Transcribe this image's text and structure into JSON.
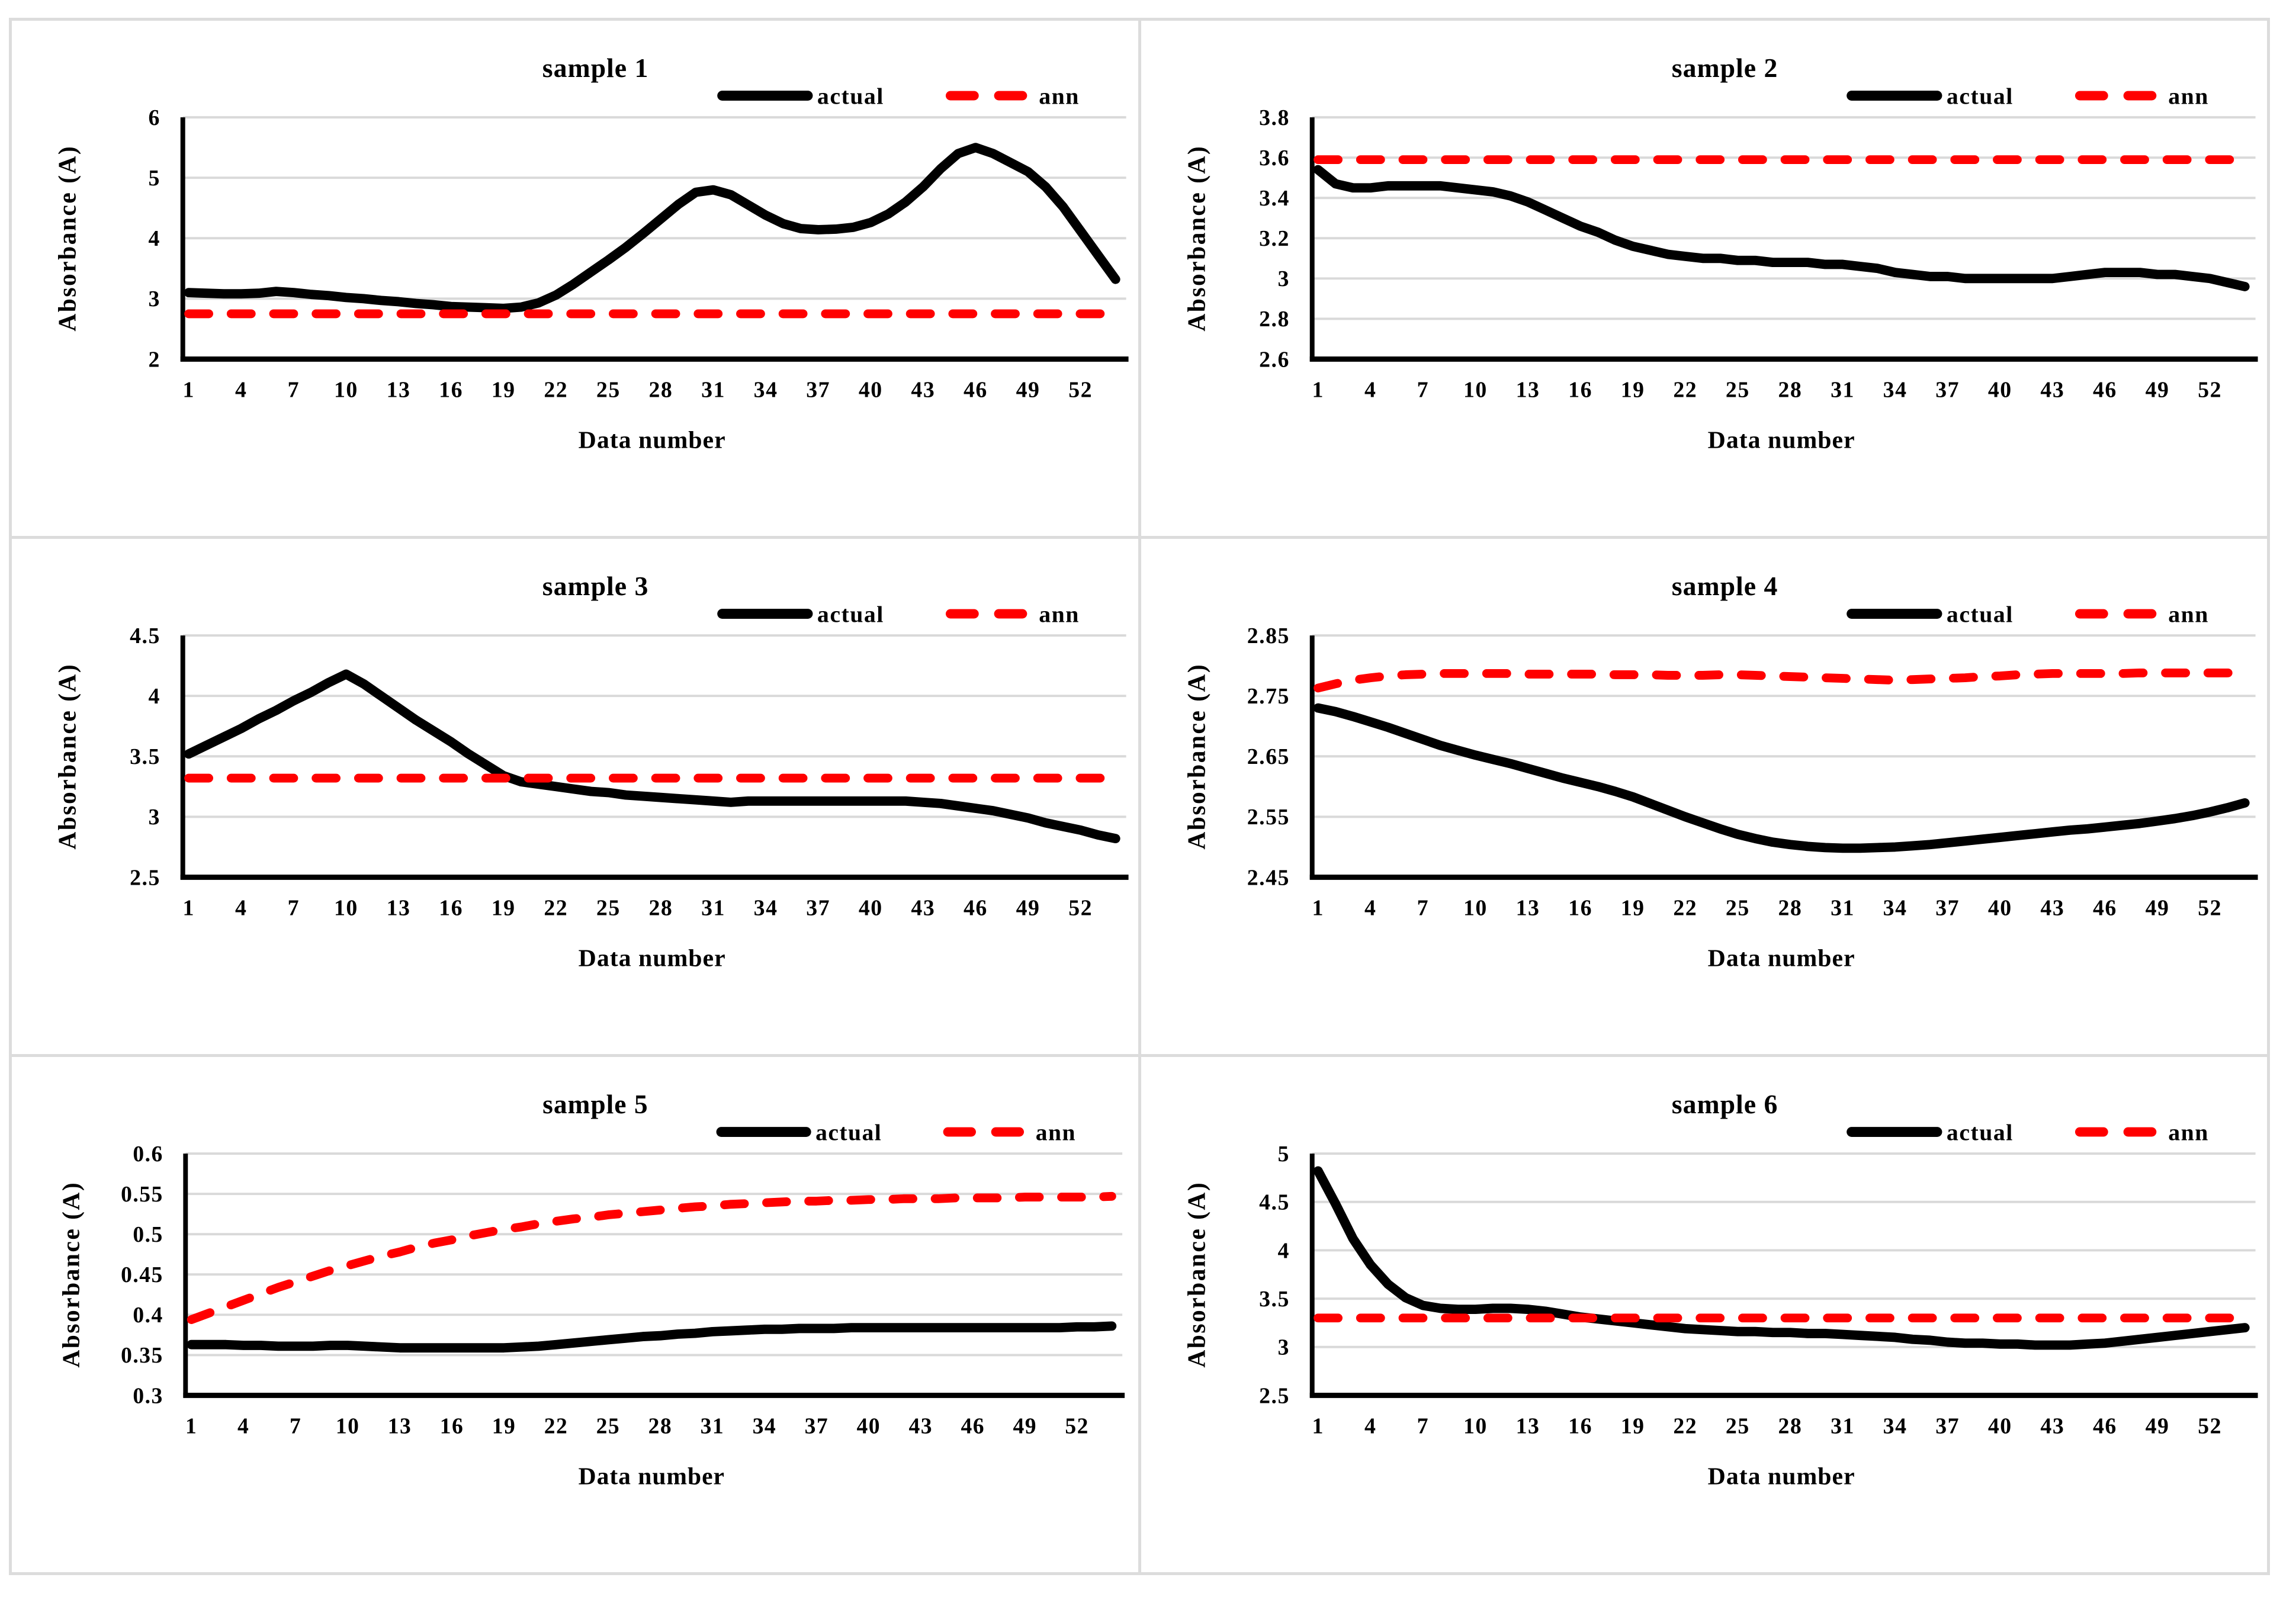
{
  "colors": {
    "actual": "#000000",
    "ann": "#ff0000",
    "gridline": "#d9d9d9",
    "frame_border": "#dcdcdc",
    "axis": "#000000",
    "background": "#ffffff"
  },
  "legend": {
    "actual_label": "actual",
    "ann_label": "ann"
  },
  "axes": {
    "x_label": "Data number",
    "y_label": "Absorbance (A)"
  },
  "chart_data": [
    {
      "type": "line",
      "title": "sample 1",
      "xlabel": "Data number",
      "ylabel": "Absorbance (A)",
      "n_points": 54,
      "x_ticks": [
        1,
        4,
        7,
        10,
        13,
        16,
        19,
        22,
        25,
        28,
        31,
        34,
        37,
        40,
        43,
        46,
        49,
        52
      ],
      "ylim": [
        2,
        6
      ],
      "y_tick_labels": [
        "6",
        "5",
        "4",
        "3",
        "2"
      ],
      "grid": true,
      "legend_position": "top-right",
      "series": [
        {
          "name": "actual",
          "color": "#000000",
          "line": "solid",
          "values": [
            3.1,
            3.09,
            3.08,
            3.08,
            3.09,
            3.12,
            3.1,
            3.07,
            3.05,
            3.02,
            3.0,
            2.97,
            2.95,
            2.92,
            2.9,
            2.87,
            2.86,
            2.85,
            2.84,
            2.86,
            2.93,
            3.06,
            3.24,
            3.44,
            3.64,
            3.85,
            4.08,
            4.32,
            4.56,
            4.76,
            4.8,
            4.72,
            4.55,
            4.38,
            4.24,
            4.16,
            4.14,
            4.15,
            4.18,
            4.26,
            4.4,
            4.6,
            4.85,
            5.15,
            5.4,
            5.5,
            5.4,
            5.25,
            5.1,
            4.85,
            4.52,
            4.12,
            3.72,
            3.32
          ]
        },
        {
          "name": "ann",
          "color": "#ff0000",
          "line": "dashed",
          "constant": 2.75
        }
      ]
    },
    {
      "type": "line",
      "title": "sample 2",
      "xlabel": "Data number",
      "ylabel": "Absorbance (A)",
      "n_points": 54,
      "x_ticks": [
        1,
        4,
        7,
        10,
        13,
        16,
        19,
        22,
        25,
        28,
        31,
        34,
        37,
        40,
        43,
        46,
        49,
        52
      ],
      "ylim": [
        2.6,
        3.8
      ],
      "y_tick_labels": [
        "3.8",
        "3.6",
        "3.4",
        "3.2",
        "3",
        "2.8",
        "2.6"
      ],
      "grid": true,
      "legend_position": "top-right",
      "series": [
        {
          "name": "actual",
          "color": "#000000",
          "line": "solid",
          "values": [
            3.54,
            3.47,
            3.45,
            3.45,
            3.46,
            3.46,
            3.46,
            3.46,
            3.45,
            3.44,
            3.43,
            3.41,
            3.38,
            3.34,
            3.3,
            3.26,
            3.23,
            3.19,
            3.16,
            3.14,
            3.12,
            3.11,
            3.1,
            3.1,
            3.09,
            3.09,
            3.08,
            3.08,
            3.08,
            3.07,
            3.07,
            3.06,
            3.05,
            3.03,
            3.02,
            3.01,
            3.01,
            3.0,
            3.0,
            3.0,
            3.0,
            3.0,
            3.0,
            3.01,
            3.02,
            3.03,
            3.03,
            3.03,
            3.02,
            3.02,
            3.01,
            3.0,
            2.98,
            2.96
          ]
        },
        {
          "name": "ann",
          "color": "#ff0000",
          "line": "dashed",
          "constant": 3.59
        }
      ]
    },
    {
      "type": "line",
      "title": "sample 3",
      "xlabel": "Data number",
      "ylabel": "Absorbance (A)",
      "n_points": 54,
      "x_ticks": [
        1,
        4,
        7,
        10,
        13,
        16,
        19,
        22,
        25,
        28,
        31,
        34,
        37,
        40,
        43,
        46,
        49,
        52
      ],
      "ylim": [
        2.5,
        4.5
      ],
      "y_tick_labels": [
        "4.5",
        "4",
        "3.5",
        "3",
        "2.5"
      ],
      "grid": true,
      "legend_position": "top-right",
      "series": [
        {
          "name": "actual",
          "color": "#000000",
          "line": "solid",
          "values": [
            3.52,
            3.59,
            3.66,
            3.73,
            3.81,
            3.88,
            3.96,
            4.03,
            4.11,
            4.18,
            4.1,
            4.0,
            3.9,
            3.8,
            3.71,
            3.62,
            3.52,
            3.43,
            3.34,
            3.29,
            3.27,
            3.25,
            3.23,
            3.21,
            3.2,
            3.18,
            3.17,
            3.16,
            3.15,
            3.14,
            3.13,
            3.12,
            3.13,
            3.13,
            3.13,
            3.13,
            3.13,
            3.13,
            3.13,
            3.13,
            3.13,
            3.13,
            3.12,
            3.11,
            3.09,
            3.07,
            3.05,
            3.02,
            2.99,
            2.95,
            2.92,
            2.89,
            2.85,
            2.82
          ]
        },
        {
          "name": "ann",
          "color": "#ff0000",
          "line": "dashed",
          "constant": 3.32
        }
      ]
    },
    {
      "type": "line",
      "title": "sample 4",
      "xlabel": "Data number",
      "ylabel": "Absorbance (A)",
      "n_points": 54,
      "x_ticks": [
        1,
        4,
        7,
        10,
        13,
        16,
        19,
        22,
        25,
        28,
        31,
        34,
        37,
        40,
        43,
        46,
        49,
        52
      ],
      "ylim": [
        2.45,
        2.85
      ],
      "y_tick_labels": [
        "2.85",
        "2.75",
        "2.65",
        "2.55",
        "2.45"
      ],
      "grid": true,
      "legend_position": "top-right",
      "series": [
        {
          "name": "actual",
          "color": "#000000",
          "line": "solid",
          "values": [
            2.73,
            2.724,
            2.716,
            2.707,
            2.698,
            2.688,
            2.678,
            2.668,
            2.66,
            2.652,
            2.645,
            2.638,
            2.63,
            2.622,
            2.614,
            2.607,
            2.6,
            2.592,
            2.583,
            2.572,
            2.561,
            2.55,
            2.54,
            2.53,
            2.521,
            2.514,
            2.508,
            2.504,
            2.501,
            2.499,
            2.498,
            2.498,
            2.499,
            2.5,
            2.502,
            2.504,
            2.507,
            2.51,
            2.513,
            2.516,
            2.519,
            2.522,
            2.525,
            2.528,
            2.53,
            2.533,
            2.536,
            2.539,
            2.543,
            2.547,
            2.552,
            2.558,
            2.565,
            2.573
          ]
        },
        {
          "name": "ann",
          "color": "#ff0000",
          "line": "dashed",
          "values": [
            2.763,
            2.77,
            2.776,
            2.78,
            2.783,
            2.785,
            2.786,
            2.787,
            2.787,
            2.787,
            2.787,
            2.787,
            2.786,
            2.786,
            2.786,
            2.786,
            2.786,
            2.785,
            2.785,
            2.785,
            2.784,
            2.784,
            2.784,
            2.785,
            2.785,
            2.784,
            2.783,
            2.782,
            2.781,
            2.78,
            2.779,
            2.778,
            2.777,
            2.776,
            2.777,
            2.778,
            2.779,
            2.78,
            2.782,
            2.783,
            2.785,
            2.786,
            2.787,
            2.787,
            2.787,
            2.787,
            2.787,
            2.788,
            2.788,
            2.788,
            2.788,
            2.788,
            2.788,
            2.789
          ]
        }
      ]
    },
    {
      "type": "line",
      "title": "sample 5",
      "xlabel": "Data number",
      "ylabel": "Absorbance (A)",
      "n_points": 54,
      "x_ticks": [
        1,
        4,
        7,
        10,
        13,
        16,
        19,
        22,
        25,
        28,
        31,
        34,
        37,
        40,
        43,
        46,
        49,
        52
      ],
      "ylim": [
        0.3,
        0.6
      ],
      "y_tick_labels": [
        "0.6",
        "0.55",
        "0.5",
        "0.45",
        "0.4",
        "0.35",
        "0.3"
      ],
      "grid": true,
      "legend_position": "top-right",
      "series": [
        {
          "name": "actual",
          "color": "#000000",
          "line": "solid",
          "values": [
            0.363,
            0.363,
            0.363,
            0.362,
            0.362,
            0.361,
            0.361,
            0.361,
            0.362,
            0.362,
            0.361,
            0.36,
            0.359,
            0.359,
            0.359,
            0.359,
            0.359,
            0.359,
            0.359,
            0.36,
            0.361,
            0.363,
            0.365,
            0.367,
            0.369,
            0.371,
            0.373,
            0.374,
            0.376,
            0.377,
            0.379,
            0.38,
            0.381,
            0.382,
            0.382,
            0.383,
            0.383,
            0.383,
            0.384,
            0.384,
            0.384,
            0.384,
            0.384,
            0.384,
            0.384,
            0.384,
            0.384,
            0.384,
            0.384,
            0.384,
            0.384,
            0.385,
            0.385,
            0.386
          ]
        },
        {
          "name": "ann",
          "color": "#ff0000",
          "line": "dashed",
          "values": [
            0.394,
            0.402,
            0.41,
            0.418,
            0.426,
            0.434,
            0.441,
            0.448,
            0.455,
            0.461,
            0.467,
            0.473,
            0.478,
            0.484,
            0.489,
            0.493,
            0.498,
            0.502,
            0.506,
            0.509,
            0.513,
            0.516,
            0.519,
            0.521,
            0.524,
            0.526,
            0.528,
            0.53,
            0.532,
            0.534,
            0.535,
            0.537,
            0.538,
            0.539,
            0.54,
            0.541,
            0.541,
            0.542,
            0.542,
            0.543,
            0.543,
            0.544,
            0.544,
            0.544,
            0.545,
            0.545,
            0.545,
            0.545,
            0.546,
            0.546,
            0.546,
            0.546,
            0.546,
            0.547
          ]
        }
      ]
    },
    {
      "type": "line",
      "title": "sample 6",
      "xlabel": "Data number",
      "ylabel": "Absorbance (A)",
      "n_points": 54,
      "x_ticks": [
        1,
        4,
        7,
        10,
        13,
        16,
        19,
        22,
        25,
        28,
        31,
        34,
        37,
        40,
        43,
        46,
        49,
        52
      ],
      "ylim": [
        2.5,
        5
      ],
      "y_tick_labels": [
        "5",
        "4.5",
        "4",
        "3.5",
        "3",
        "2.5"
      ],
      "grid": true,
      "legend_position": "top-right",
      "series": [
        {
          "name": "actual",
          "color": "#000000",
          "line": "solid",
          "values": [
            4.82,
            4.48,
            4.12,
            3.85,
            3.65,
            3.51,
            3.43,
            3.4,
            3.39,
            3.39,
            3.4,
            3.4,
            3.39,
            3.37,
            3.34,
            3.31,
            3.29,
            3.27,
            3.25,
            3.23,
            3.21,
            3.19,
            3.18,
            3.17,
            3.16,
            3.16,
            3.15,
            3.15,
            3.14,
            3.14,
            3.13,
            3.12,
            3.11,
            3.1,
            3.08,
            3.07,
            3.05,
            3.04,
            3.04,
            3.03,
            3.03,
            3.02,
            3.02,
            3.02,
            3.03,
            3.04,
            3.06,
            3.08,
            3.1,
            3.12,
            3.14,
            3.16,
            3.18,
            3.2
          ]
        },
        {
          "name": "ann",
          "color": "#ff0000",
          "line": "dashed",
          "constant": 3.3
        }
      ]
    }
  ]
}
